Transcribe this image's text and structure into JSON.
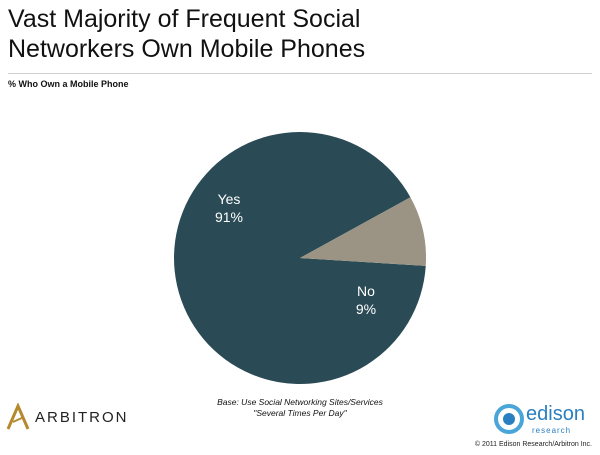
{
  "title_lines": [
    "Vast Majority of Frequent Social",
    "Networkers Own Mobile Phones"
  ],
  "subtitle": "% Who Own a Mobile Phone",
  "chart_data": {
    "type": "pie",
    "title": "Vast Majority of Frequent Social Networkers Own Mobile Phones",
    "subtitle": "% Who Own a Mobile Phone",
    "slices": [
      {
        "label": "Yes",
        "value": 91,
        "display": "91%",
        "color": "#2a4b55"
      },
      {
        "label": "No",
        "value": 9,
        "display": "9%",
        "color": "#9b9484"
      }
    ]
  },
  "base_note": {
    "line1": "Base: Use Social Networking Sites/Services",
    "line2": "\"Several Times Per Day\""
  },
  "logos": {
    "arbitron": "ARBITRON",
    "edison_word": "edison",
    "edison_sub": "research"
  },
  "copyright": "© 2011 Edison Research/Arbitron Inc."
}
